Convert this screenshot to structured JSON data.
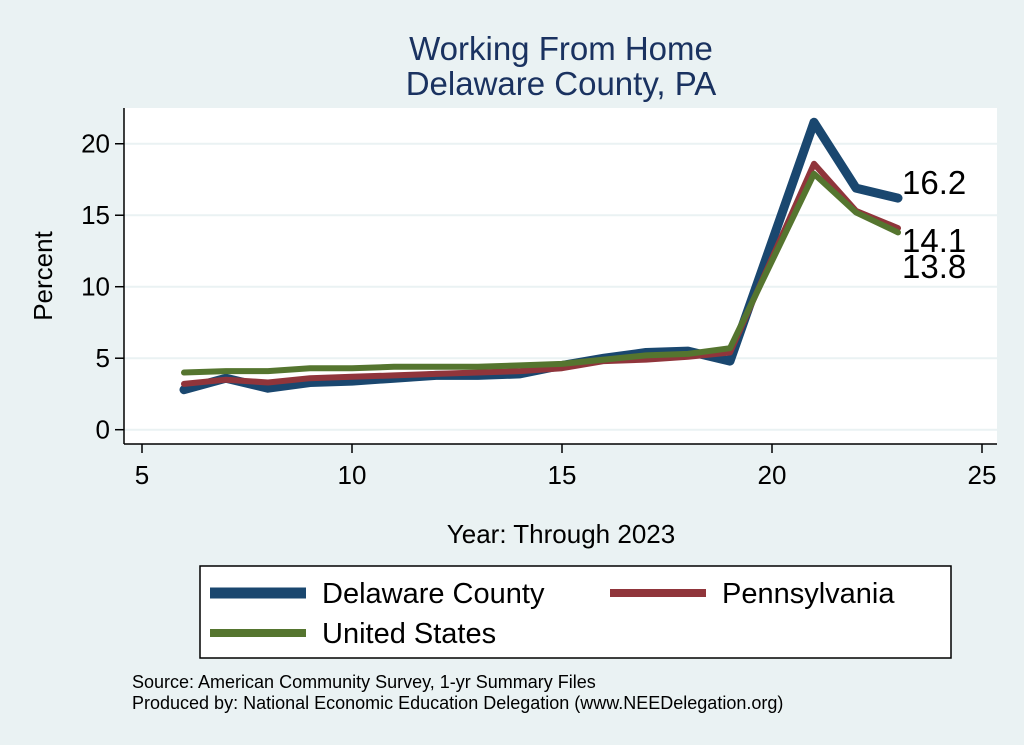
{
  "chart_data": {
    "type": "line",
    "title": [
      "Working From Home",
      "Delaware County, PA"
    ],
    "xlabel": "Year: Through 2023",
    "ylabel": "Percent",
    "xlim": [
      5,
      25
    ],
    "ylim": [
      -1,
      22.5
    ],
    "xticks": [
      5,
      10,
      15,
      20,
      25
    ],
    "yticks": [
      0,
      5,
      10,
      15,
      20
    ],
    "grid": "horizontal",
    "legend_position": "bottom",
    "x": [
      6,
      7,
      8,
      9,
      10,
      11,
      12,
      13,
      14,
      15,
      16,
      17,
      18,
      19,
      21,
      22,
      23
    ],
    "series": [
      {
        "name": "Delaware County",
        "color": "#1a476f",
        "width": 9,
        "values": [
          2.8,
          3.6,
          2.9,
          3.3,
          3.4,
          3.6,
          3.8,
          3.8,
          3.9,
          4.5,
          5.0,
          5.4,
          5.5,
          4.8,
          21.5,
          16.9,
          16.2
        ],
        "end_label": "16.2"
      },
      {
        "name": "Pennsylvania",
        "color": "#90353b",
        "width": 6,
        "values": [
          3.2,
          3.5,
          3.3,
          3.6,
          3.7,
          3.8,
          3.9,
          4.0,
          4.1,
          4.3,
          4.8,
          4.9,
          5.1,
          5.4,
          18.6,
          15.3,
          14.1
        ],
        "end_label": "14.1"
      },
      {
        "name": "United States",
        "color": "#55752f",
        "width": 6,
        "values": [
          4.0,
          4.1,
          4.1,
          4.3,
          4.3,
          4.4,
          4.4,
          4.4,
          4.5,
          4.6,
          4.9,
          5.2,
          5.3,
          5.7,
          17.9,
          15.2,
          13.8
        ],
        "end_label": "13.8"
      }
    ]
  },
  "source_lines": [
    "Source: American Community Survey, 1-yr Summary Files",
    "Produced by: National Economic Education Delegation (www.NEEDelegation.org)"
  ]
}
